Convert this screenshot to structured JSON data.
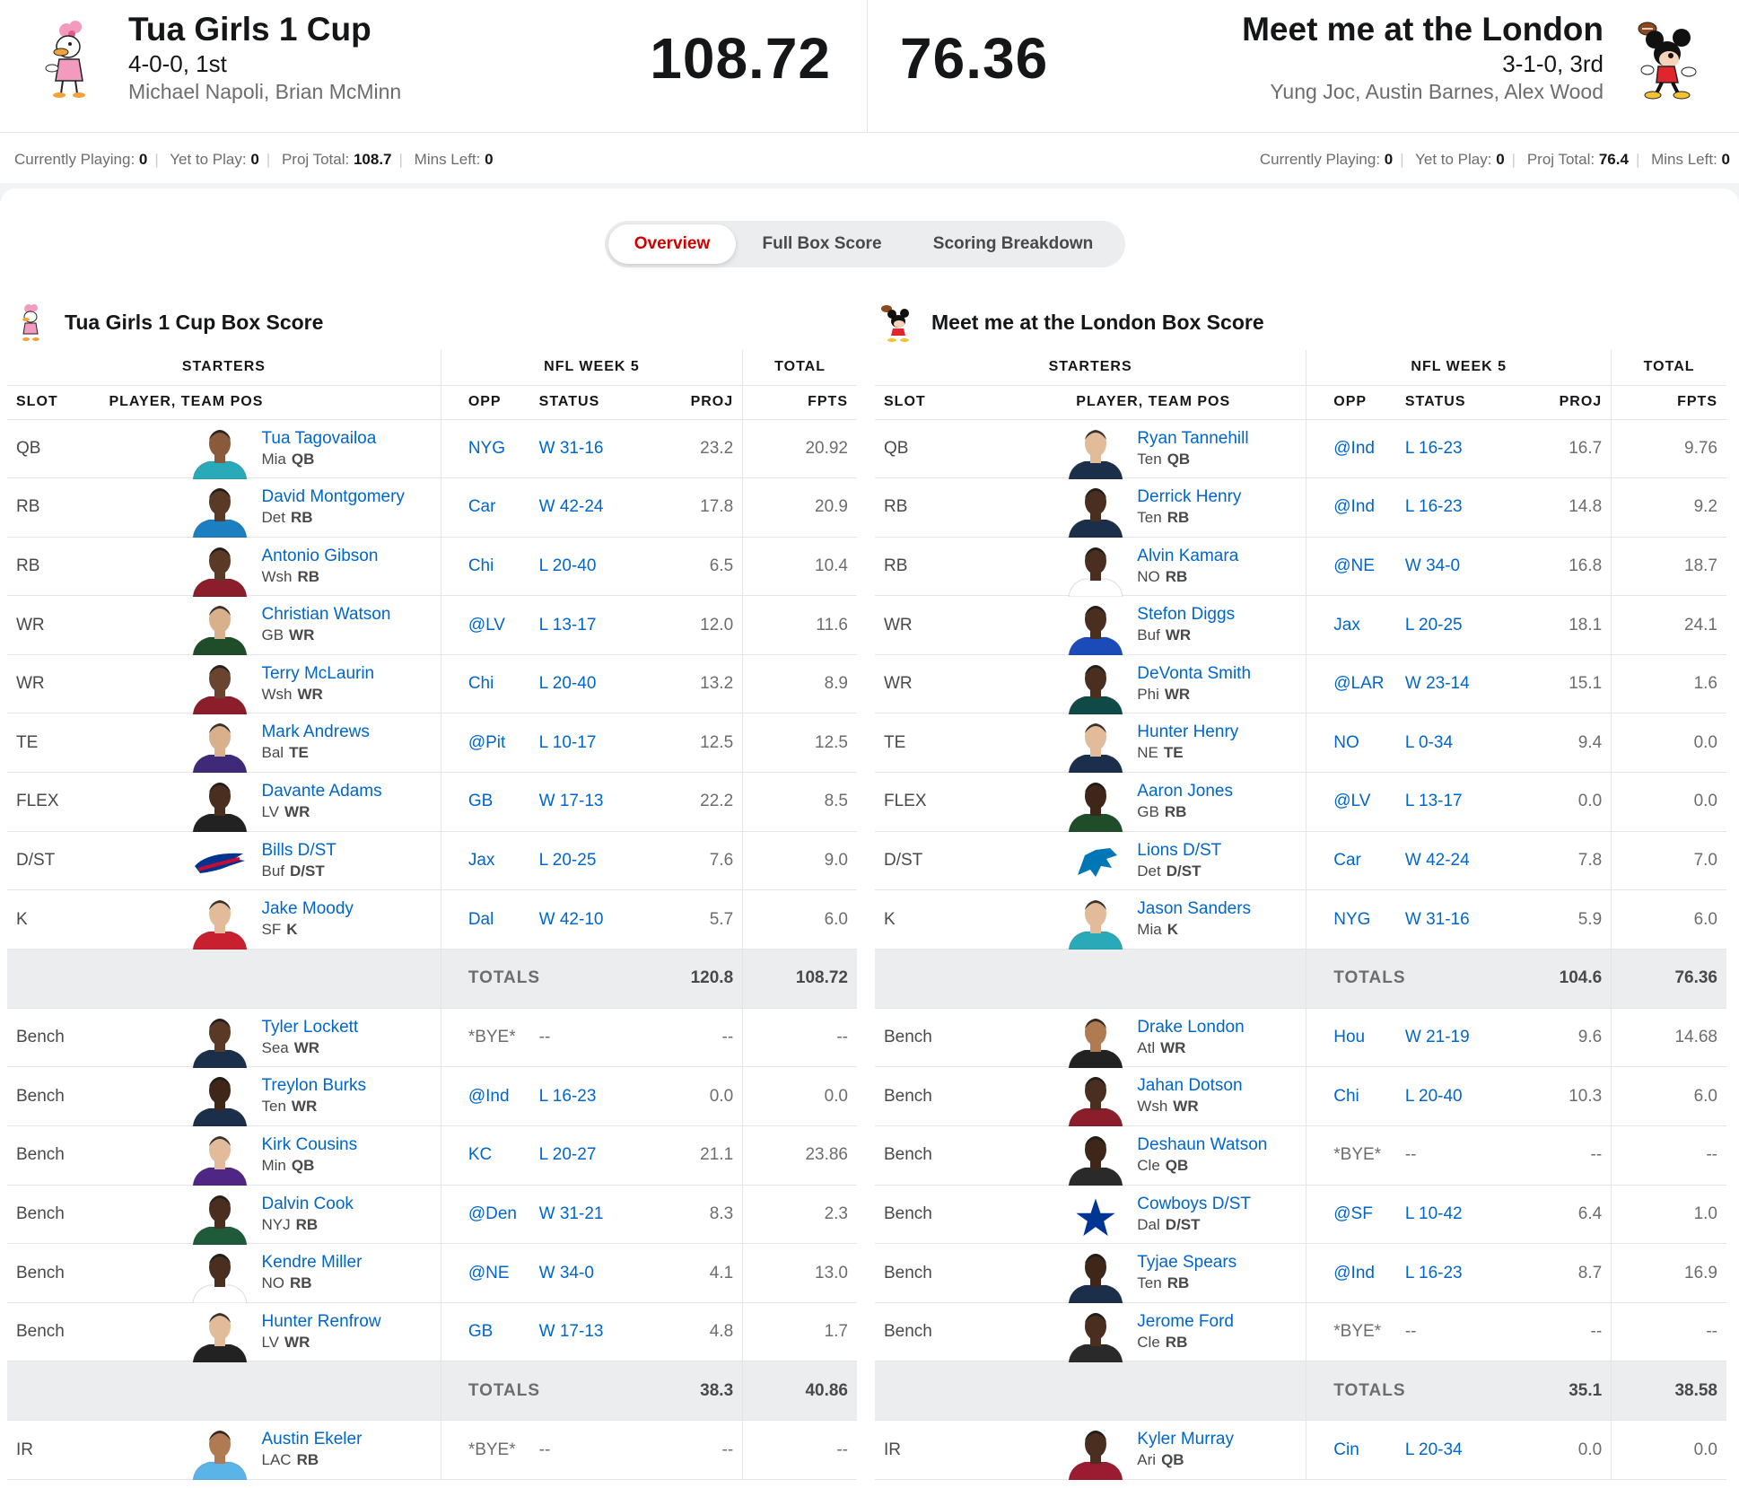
{
  "matchup": {
    "home": {
      "name": "Tua Girls 1 Cup",
      "record": "4-0-0, 1st",
      "owners": "Michael Napoli, Brian McMinn",
      "score": "108.72",
      "logo_icon": "daisy-duck-logo-icon",
      "status": {
        "currently_playing_label": "Currently Playing:",
        "currently_playing": "0",
        "yet_to_play_label": "Yet to Play:",
        "yet_to_play": "0",
        "proj_total_label": "Proj Total:",
        "proj_total": "108.7",
        "mins_left_label": "Mins Left:",
        "mins_left": "0"
      }
    },
    "away": {
      "name": "Meet me at the London",
      "record": "3-1-0, 3rd",
      "owners": "Yung Joc, Austin Barnes, Alex Wood",
      "score": "76.36",
      "logo_icon": "mickey-mouse-logo-icon",
      "status": {
        "currently_playing_label": "Currently Playing:",
        "currently_playing": "0",
        "yet_to_play_label": "Yet to Play:",
        "yet_to_play": "0",
        "proj_total_label": "Proj Total:",
        "proj_total": "76.4",
        "mins_left_label": "Mins Left:",
        "mins_left": "0"
      }
    }
  },
  "tabs": [
    {
      "label": "Overview",
      "active": true
    },
    {
      "label": "Full Box Score",
      "active": false
    },
    {
      "label": "Scoring Breakdown",
      "active": false
    }
  ],
  "colors": {
    "link": "#0066cc",
    "active_tab": "#d00000",
    "totals_bg": "#ebedef"
  },
  "box_headers": {
    "starters": "STARTERS",
    "week": "NFL WEEK 5",
    "total": "TOTAL",
    "slot": "SLOT",
    "player": "PLAYER, TEAM POS",
    "opp": "OPP",
    "status": "STATUS",
    "proj": "PROJ",
    "fpts": "FPTS",
    "totals": "TOTALS"
  },
  "left_box": {
    "title": "Tua Girls 1 Cup Box Score",
    "starters": [
      {
        "slot": "QB",
        "name": "Tua Tagovailoa",
        "team": "Mia",
        "pos": "QB",
        "opp": "NYG",
        "status": "W 31-16",
        "proj": "23.2",
        "fpts": "20.92",
        "skin": "#8a5a3c",
        "jersey": "#2aa9b8"
      },
      {
        "slot": "RB",
        "name": "David Montgomery",
        "team": "Det",
        "pos": "RB",
        "opp": "Car",
        "status": "W 42-24",
        "proj": "17.8",
        "fpts": "20.9",
        "skin": "#5a3a26",
        "jersey": "#1b7fc2"
      },
      {
        "slot": "RB",
        "name": "Antonio Gibson",
        "team": "Wsh",
        "pos": "RB",
        "opp": "Chi",
        "status": "L 20-40",
        "proj": "6.5",
        "fpts": "10.4",
        "skin": "#5a3a26",
        "jersey": "#8c1d2b"
      },
      {
        "slot": "WR",
        "name": "Christian Watson",
        "team": "GB",
        "pos": "WR",
        "opp": "@LV",
        "status": "L 13-17",
        "proj": "12.0",
        "fpts": "11.6",
        "skin": "#d9b08c",
        "jersey": "#1f4d2a"
      },
      {
        "slot": "WR",
        "name": "Terry McLaurin",
        "team": "Wsh",
        "pos": "WR",
        "opp": "Chi",
        "status": "L 20-40",
        "proj": "13.2",
        "fpts": "8.9",
        "skin": "#6b4430",
        "jersey": "#8c1d2b"
      },
      {
        "slot": "TE",
        "name": "Mark Andrews",
        "team": "Bal",
        "pos": "TE",
        "opp": "@Pit",
        "status": "L 10-17",
        "proj": "12.5",
        "fpts": "12.5",
        "skin": "#d9b08c",
        "jersey": "#3e2a78"
      },
      {
        "slot": "FLEX",
        "name": "Davante Adams",
        "team": "LV",
        "pos": "WR",
        "opp": "GB",
        "status": "W 17-13",
        "proj": "22.2",
        "fpts": "8.5",
        "skin": "#4a2f20",
        "jersey": "#222222"
      },
      {
        "slot": "D/ST",
        "name": "Bills D/ST",
        "team": "Buf",
        "pos": "D/ST",
        "opp": "Jax",
        "status": "L 20-25",
        "proj": "7.6",
        "fpts": "9.0",
        "dst": "bills"
      },
      {
        "slot": "K",
        "name": "Jake Moody",
        "team": "SF",
        "pos": "K",
        "opp": "Dal",
        "status": "W 42-10",
        "proj": "5.7",
        "fpts": "6.0",
        "skin": "#e2bb9a",
        "jersey": "#c8202f"
      }
    ],
    "starters_totals": {
      "proj": "120.8",
      "fpts": "108.72"
    },
    "bench": [
      {
        "slot": "Bench",
        "name": "Tyler Lockett",
        "team": "Sea",
        "pos": "WR",
        "opp": "*BYE*",
        "status": "--",
        "proj": "--",
        "fpts": "--",
        "skin": "#5a3a26",
        "jersey": "#1c2f4a"
      },
      {
        "slot": "Bench",
        "name": "Treylon Burks",
        "team": "Ten",
        "pos": "WR",
        "opp": "@Ind",
        "status": "L 16-23",
        "proj": "0.0",
        "fpts": "0.0",
        "skin": "#3e2618",
        "jersey": "#1c2f4a"
      },
      {
        "slot": "Bench",
        "name": "Kirk Cousins",
        "team": "Min",
        "pos": "QB",
        "opp": "KC",
        "status": "L 20-27",
        "proj": "21.1",
        "fpts": "23.86",
        "skin": "#e2bb9a",
        "jersey": "#4f2683"
      },
      {
        "slot": "Bench",
        "name": "Dalvin Cook",
        "team": "NYJ",
        "pos": "RB",
        "opp": "@Den",
        "status": "W 31-21",
        "proj": "8.3",
        "fpts": "2.3",
        "skin": "#4a2f20",
        "jersey": "#1f5a3a"
      },
      {
        "slot": "Bench",
        "name": "Kendre Miller",
        "team": "NO",
        "pos": "RB",
        "opp": "@NE",
        "status": "W 34-0",
        "proj": "4.1",
        "fpts": "13.0",
        "skin": "#4a2f20",
        "jersey": "#ffffff"
      },
      {
        "slot": "Bench",
        "name": "Hunter Renfrow",
        "team": "LV",
        "pos": "WR",
        "opp": "GB",
        "status": "W 17-13",
        "proj": "4.8",
        "fpts": "1.7",
        "skin": "#e2bb9a",
        "jersey": "#222222"
      }
    ],
    "bench_totals": {
      "proj": "38.3",
      "fpts": "40.86"
    },
    "ir": [
      {
        "slot": "IR",
        "name": "Austin Ekeler",
        "team": "LAC",
        "pos": "RB",
        "opp": "*BYE*",
        "status": "--",
        "proj": "--",
        "fpts": "--",
        "skin": "#b07a52",
        "jersey": "#5bb4e8"
      }
    ]
  },
  "right_box": {
    "title": "Meet me at the London Box Score",
    "starters": [
      {
        "slot": "QB",
        "name": "Ryan Tannehill",
        "team": "Ten",
        "pos": "QB",
        "opp": "@Ind",
        "status": "L 16-23",
        "proj": "16.7",
        "fpts": "9.76",
        "skin": "#e2bb9a",
        "jersey": "#1c2f4a"
      },
      {
        "slot": "RB",
        "name": "Derrick Henry",
        "team": "Ten",
        "pos": "RB",
        "opp": "@Ind",
        "status": "L 16-23",
        "proj": "14.8",
        "fpts": "9.2",
        "skin": "#4a2f20",
        "jersey": "#1c2f4a"
      },
      {
        "slot": "RB",
        "name": "Alvin Kamara",
        "team": "NO",
        "pos": "RB",
        "opp": "@NE",
        "status": "W 34-0",
        "proj": "16.8",
        "fpts": "18.7",
        "skin": "#4a2f20",
        "jersey": "#ffffff"
      },
      {
        "slot": "WR",
        "name": "Stefon Diggs",
        "team": "Buf",
        "pos": "WR",
        "opp": "Jax",
        "status": "L 20-25",
        "proj": "18.1",
        "fpts": "24.1",
        "skin": "#4a2f20",
        "jersey": "#1a4bb8"
      },
      {
        "slot": "WR",
        "name": "DeVonta Smith",
        "team": "Phi",
        "pos": "WR",
        "opp": "@LAR",
        "status": "W 23-14",
        "proj": "15.1",
        "fpts": "1.6",
        "skin": "#4a2f20",
        "jersey": "#0f4a46"
      },
      {
        "slot": "TE",
        "name": "Hunter Henry",
        "team": "NE",
        "pos": "TE",
        "opp": "NO",
        "status": "L 0-34",
        "proj": "9.4",
        "fpts": "0.0",
        "skin": "#e2bb9a",
        "jersey": "#1c2f4a"
      },
      {
        "slot": "FLEX",
        "name": "Aaron Jones",
        "team": "GB",
        "pos": "RB",
        "opp": "@LV",
        "status": "L 13-17",
        "proj": "0.0",
        "fpts": "0.0",
        "skin": "#3e2618",
        "jersey": "#1f4d2a"
      },
      {
        "slot": "D/ST",
        "name": "Lions D/ST",
        "team": "Det",
        "pos": "D/ST",
        "opp": "Car",
        "status": "W 42-24",
        "proj": "7.8",
        "fpts": "7.0",
        "dst": "lions"
      },
      {
        "slot": "K",
        "name": "Jason Sanders",
        "team": "Mia",
        "pos": "K",
        "opp": "NYG",
        "status": "W 31-16",
        "proj": "5.9",
        "fpts": "6.0",
        "skin": "#e2bb9a",
        "jersey": "#2aa9b8"
      }
    ],
    "starters_totals": {
      "proj": "104.6",
      "fpts": "76.36"
    },
    "bench": [
      {
        "slot": "Bench",
        "name": "Drake London",
        "team": "Atl",
        "pos": "WR",
        "opp": "Hou",
        "status": "W 21-19",
        "proj": "9.6",
        "fpts": "14.68",
        "skin": "#b07a52",
        "jersey": "#222222"
      },
      {
        "slot": "Bench",
        "name": "Jahan Dotson",
        "team": "Wsh",
        "pos": "WR",
        "opp": "Chi",
        "status": "L 20-40",
        "proj": "10.3",
        "fpts": "6.0",
        "skin": "#4a2f20",
        "jersey": "#8c1d2b"
      },
      {
        "slot": "Bench",
        "name": "Deshaun Watson",
        "team": "Cle",
        "pos": "QB",
        "opp": "*BYE*",
        "status": "--",
        "proj": "--",
        "fpts": "--",
        "skin": "#3e2618",
        "jersey": "#2a2a2a"
      },
      {
        "slot": "Bench",
        "name": "Cowboys D/ST",
        "team": "Dal",
        "pos": "D/ST",
        "opp": "@SF",
        "status": "L 10-42",
        "proj": "6.4",
        "fpts": "1.0",
        "dst": "cowboys"
      },
      {
        "slot": "Bench",
        "name": "Tyjae Spears",
        "team": "Ten",
        "pos": "RB",
        "opp": "@Ind",
        "status": "L 16-23",
        "proj": "8.7",
        "fpts": "16.9",
        "skin": "#3e2618",
        "jersey": "#1c2f4a"
      },
      {
        "slot": "Bench",
        "name": "Jerome Ford",
        "team": "Cle",
        "pos": "RB",
        "opp": "*BYE*",
        "status": "--",
        "proj": "--",
        "fpts": "--",
        "skin": "#4a2f20",
        "jersey": "#2a2a2a"
      }
    ],
    "bench_totals": {
      "proj": "35.1",
      "fpts": "38.58"
    },
    "ir": [
      {
        "slot": "IR",
        "name": "Kyler Murray",
        "team": "Ari",
        "pos": "QB",
        "opp": "Cin",
        "status": "L 20-34",
        "proj": "0.0",
        "fpts": "0.0",
        "skin": "#4a2f20",
        "jersey": "#9b1b30"
      }
    ]
  }
}
